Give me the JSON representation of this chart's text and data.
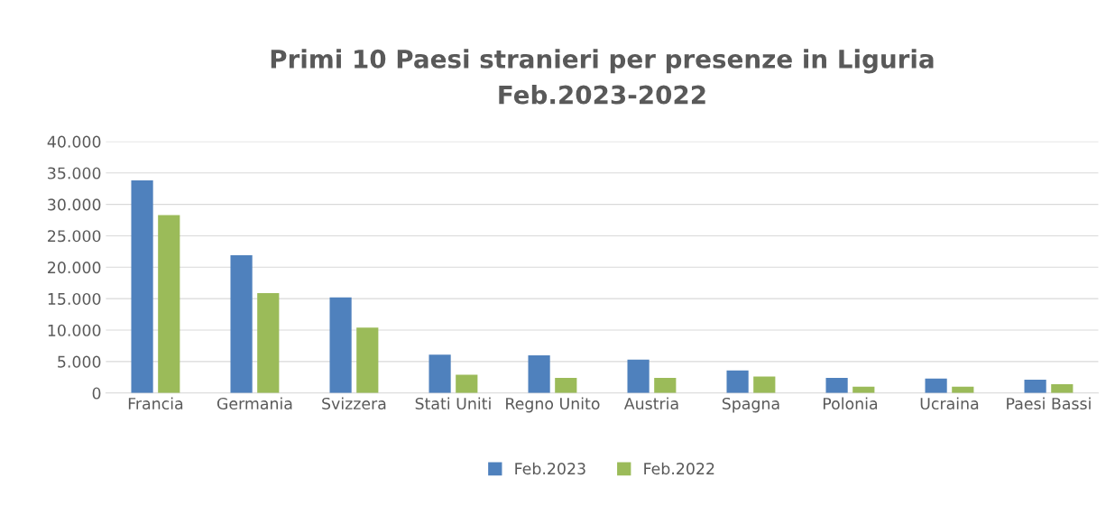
{
  "chart_data": {
    "type": "bar",
    "title": "Primi 10 Paesi stranieri per presenze in Liguria\nFeb.2023-2022",
    "categories": [
      "Francia",
      "Germania",
      "Svizzera",
      "Stati Uniti",
      "Regno Unito",
      "Austria",
      "Spagna",
      "Polonia",
      "Ucraina",
      "Paesi Bassi"
    ],
    "series": [
      {
        "name": "Feb.2023",
        "color": "#4f81bd",
        "values": [
          33800,
          21900,
          15200,
          6100,
          6000,
          5300,
          3600,
          2400,
          2300,
          2100
        ]
      },
      {
        "name": "Feb.2022",
        "color": "#9bbb59",
        "values": [
          28300,
          15900,
          10400,
          2900,
          2400,
          2400,
          2600,
          1000,
          1000,
          1400
        ]
      }
    ],
    "ylim": [
      0,
      40000
    ],
    "yticks": [
      0,
      {
        "value": 5000,
        "label": "5.000"
      },
      {
        "value": 10000,
        "label": "10.000"
      },
      {
        "value": 15000,
        "label": "15.000"
      },
      {
        "value": 20000,
        "label": "20.000"
      },
      {
        "value": 25000,
        "label": "25.000"
      },
      {
        "value": 30000,
        "label": "30.000"
      },
      {
        "value": 35000,
        "label": "35.000"
      },
      {
        "value": 40000,
        "label": "40.000"
      }
    ],
    "grid": "y",
    "legend": "bottom"
  }
}
